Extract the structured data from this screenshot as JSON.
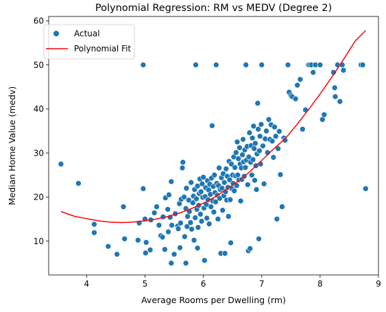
{
  "chart_data": {
    "type": "scatter",
    "title": "Polynomial Regression: RM vs MEDV (Degree 2)",
    "xlabel": "Average Rooms per Dwelling (rm)",
    "ylabel": "Median Home Value (medv)",
    "xlim": [
      3.35,
      9.0
    ],
    "ylim": [
      2.3,
      61.0
    ],
    "xticks": [
      4,
      5,
      6,
      7,
      8,
      9
    ],
    "yticks": [
      10,
      20,
      30,
      40,
      50,
      60
    ],
    "grid": false,
    "legend": "top-left",
    "series": [
      {
        "name": "Actual",
        "kind": "scatter",
        "color": "#1f77b4",
        "points": [
          [
            3.56,
            27.5
          ],
          [
            3.86,
            23.1
          ],
          [
            4.13,
            13.8
          ],
          [
            4.13,
            11.9
          ],
          [
            4.37,
            8.8
          ],
          [
            4.52,
            7.0
          ],
          [
            4.63,
            17.8
          ],
          [
            4.65,
            10.5
          ],
          [
            4.88,
            10.2
          ],
          [
            4.9,
            14.1
          ],
          [
            4.97,
            50.0
          ],
          [
            4.97,
            21.9
          ],
          [
            5.0,
            15.0
          ],
          [
            5.01,
            7.3
          ],
          [
            5.02,
            9.7
          ],
          [
            5.09,
            8.0
          ],
          [
            5.1,
            14.8
          ],
          [
            5.16,
            16.4
          ],
          [
            5.2,
            17.8
          ],
          [
            5.24,
            13.6
          ],
          [
            5.27,
            11.2
          ],
          [
            5.3,
            10.9
          ],
          [
            5.31,
            15.5
          ],
          [
            5.34,
            8.1
          ],
          [
            5.35,
            19.8
          ],
          [
            5.39,
            17.2
          ],
          [
            5.4,
            12.1
          ],
          [
            5.41,
            20.5
          ],
          [
            5.43,
            15.4
          ],
          [
            5.45,
            5.0
          ],
          [
            5.45,
            23.5
          ],
          [
            5.46,
            13.6
          ],
          [
            5.5,
            7.0
          ],
          [
            5.52,
            16.2
          ],
          [
            5.56,
            13.4
          ],
          [
            5.57,
            12.8
          ],
          [
            5.59,
            18.5
          ],
          [
            5.6,
            8.5
          ],
          [
            5.61,
            14.1
          ],
          [
            5.62,
            19.5
          ],
          [
            5.64,
            26.6
          ],
          [
            5.65,
            27.9
          ],
          [
            5.67,
            20.0
          ],
          [
            5.68,
            11.0
          ],
          [
            5.7,
            17.4
          ],
          [
            5.7,
            5.0
          ],
          [
            5.71,
            22.0
          ],
          [
            5.72,
            13.3
          ],
          [
            5.73,
            15.6
          ],
          [
            5.75,
            19.3
          ],
          [
            5.76,
            16.7
          ],
          [
            5.78,
            14.2
          ],
          [
            5.79,
            23.3
          ],
          [
            5.8,
            12.7
          ],
          [
            5.82,
            18.7
          ],
          [
            5.83,
            20.2
          ],
          [
            5.84,
            10.2
          ],
          [
            5.85,
            21.7
          ],
          [
            5.86,
            15.3
          ],
          [
            5.87,
            50.0
          ],
          [
            5.88,
            19.6
          ],
          [
            5.89,
            17.2
          ],
          [
            5.9,
            22.5
          ],
          [
            5.9,
            8.4
          ],
          [
            5.91,
            13.1
          ],
          [
            5.92,
            18.1
          ],
          [
            5.93,
            20.8
          ],
          [
            5.94,
            24.1
          ],
          [
            5.95,
            16.1
          ],
          [
            5.96,
            21.2
          ],
          [
            5.97,
            14.5
          ],
          [
            5.98,
            23.0
          ],
          [
            5.99,
            19.9
          ],
          [
            6.0,
            24.5
          ],
          [
            6.01,
            17.5
          ],
          [
            6.02,
            5.6
          ],
          [
            6.03,
            20.1
          ],
          [
            6.04,
            22.1
          ],
          [
            6.05,
            18.3
          ],
          [
            6.06,
            15.2
          ],
          [
            6.07,
            23.7
          ],
          [
            6.08,
            19.4
          ],
          [
            6.09,
            21.6
          ],
          [
            6.1,
            13.9
          ],
          [
            6.11,
            22.9
          ],
          [
            6.12,
            20.6
          ],
          [
            6.13,
            17.8
          ],
          [
            6.14,
            24.3
          ],
          [
            6.15,
            36.2
          ],
          [
            6.16,
            19.1
          ],
          [
            6.17,
            22.4
          ],
          [
            6.18,
            16.6
          ],
          [
            6.19,
            25.0
          ],
          [
            6.2,
            21.0
          ],
          [
            6.21,
            18.9
          ],
          [
            6.22,
            50.0
          ],
          [
            6.23,
            23.1
          ],
          [
            6.24,
            20.4
          ],
          [
            6.25,
            15.0
          ],
          [
            6.26,
            22.6
          ],
          [
            6.27,
            26.6
          ],
          [
            6.28,
            19.7
          ],
          [
            6.29,
            21.7
          ],
          [
            6.3,
            7.2
          ],
          [
            6.31,
            24.4
          ],
          [
            6.32,
            22.0
          ],
          [
            6.33,
            17.0
          ],
          [
            6.34,
            25.3
          ],
          [
            6.35,
            20.3
          ],
          [
            6.36,
            23.3
          ],
          [
            6.37,
            7.2
          ],
          [
            6.38,
            21.2
          ],
          [
            6.39,
            26.4
          ],
          [
            6.4,
            19.3
          ],
          [
            6.41,
            24.7
          ],
          [
            6.42,
            22.2
          ],
          [
            6.43,
            15.6
          ],
          [
            6.44,
            28.1
          ],
          [
            6.45,
            23.9
          ],
          [
            6.46,
            19.4
          ],
          [
            6.47,
            9.6
          ],
          [
            6.48,
            27.5
          ],
          [
            6.49,
            21.9
          ],
          [
            6.5,
            25.0
          ],
          [
            6.51,
            23.1
          ],
          [
            6.52,
            29.1
          ],
          [
            6.53,
            21.4
          ],
          [
            6.54,
            26.7
          ],
          [
            6.55,
            24.8
          ],
          [
            6.56,
            30.1
          ],
          [
            6.57,
            22.6
          ],
          [
            6.58,
            32.5
          ],
          [
            6.59,
            25.0
          ],
          [
            6.6,
            28.7
          ],
          [
            6.61,
            23.9
          ],
          [
            6.62,
            31.2
          ],
          [
            6.63,
            27.5
          ],
          [
            6.64,
            19.1
          ],
          [
            6.65,
            26.6
          ],
          [
            6.66,
            24.0
          ],
          [
            6.67,
            29.6
          ],
          [
            6.68,
            33.1
          ],
          [
            6.69,
            28.0
          ],
          [
            6.7,
            24.7
          ],
          [
            6.71,
            30.7
          ],
          [
            6.72,
            26.7
          ],
          [
            6.73,
            50.0
          ],
          [
            6.74,
            28.4
          ],
          [
            6.75,
            31.5
          ],
          [
            6.76,
            22.8
          ],
          [
            6.77,
            7.8
          ],
          [
            6.78,
            29.1
          ],
          [
            6.79,
            34.6
          ],
          [
            6.8,
            8.3
          ],
          [
            6.81,
            27.9
          ],
          [
            6.82,
            31.7
          ],
          [
            6.83,
            25.0
          ],
          [
            6.84,
            33.4
          ],
          [
            6.85,
            28.5
          ],
          [
            6.86,
            36.1
          ],
          [
            6.87,
            31.0
          ],
          [
            6.88,
            23.8
          ],
          [
            6.89,
            32.2
          ],
          [
            6.9,
            27.1
          ],
          [
            6.91,
            21.7
          ],
          [
            6.92,
            29.8
          ],
          [
            6.93,
            41.3
          ],
          [
            6.94,
            35.4
          ],
          [
            6.95,
            10.5
          ],
          [
            6.96,
            30.5
          ],
          [
            6.97,
            33.8
          ],
          [
            6.98,
            27.5
          ],
          [
            6.99,
            36.5
          ],
          [
            7.0,
            50.0
          ],
          [
            7.02,
            31.6
          ],
          [
            7.04,
            23.0
          ],
          [
            7.06,
            33.2
          ],
          [
            7.08,
            35.0
          ],
          [
            7.1,
            30.1
          ],
          [
            7.12,
            37.6
          ],
          [
            7.14,
            33.1
          ],
          [
            7.16,
            36.4
          ],
          [
            7.18,
            32.7
          ],
          [
            7.2,
            29.0
          ],
          [
            7.22,
            35.9
          ],
          [
            7.24,
            33.8
          ],
          [
            7.26,
            15.0
          ],
          [
            7.28,
            31.0
          ],
          [
            7.3,
            34.9
          ],
          [
            7.32,
            25.1
          ],
          [
            7.35,
            17.8
          ],
          [
            7.38,
            33.4
          ],
          [
            7.4,
            32.9
          ],
          [
            7.45,
            50.0
          ],
          [
            7.47,
            43.8
          ],
          [
            7.5,
            43.1
          ],
          [
            7.52,
            42.8
          ],
          [
            7.58,
            42.3
          ],
          [
            7.61,
            45.4
          ],
          [
            7.66,
            46.7
          ],
          [
            7.7,
            35.4
          ],
          [
            7.75,
            39.8
          ],
          [
            7.8,
            50.0
          ],
          [
            7.82,
            50.0
          ],
          [
            7.85,
            50.0
          ],
          [
            7.88,
            48.3
          ],
          [
            7.92,
            50.0
          ],
          [
            8.0,
            50.0
          ],
          [
            8.04,
            37.6
          ],
          [
            8.07,
            38.7
          ],
          [
            8.23,
            48.3
          ],
          [
            8.25,
            44.8
          ],
          [
            8.26,
            42.8
          ],
          [
            8.3,
            50.0
          ],
          [
            8.34,
            41.7
          ],
          [
            8.38,
            50.0
          ],
          [
            8.4,
            48.8
          ],
          [
            8.7,
            50.0
          ],
          [
            8.73,
            50.0
          ],
          [
            8.78,
            21.9
          ]
        ]
      },
      {
        "name": "Polynomial Fit",
        "kind": "line",
        "color": "#ff0000",
        "points": [
          [
            3.56,
            16.7
          ],
          [
            3.8,
            15.6
          ],
          [
            4.0,
            15.1
          ],
          [
            4.2,
            14.6
          ],
          [
            4.4,
            14.3
          ],
          [
            4.6,
            14.2
          ],
          [
            4.8,
            14.3
          ],
          [
            5.0,
            14.6
          ],
          [
            5.2,
            15.0
          ],
          [
            5.4,
            15.6
          ],
          [
            5.6,
            16.4
          ],
          [
            5.8,
            17.4
          ],
          [
            6.0,
            18.6
          ],
          [
            6.2,
            20.0
          ],
          [
            6.4,
            21.8
          ],
          [
            6.6,
            23.6
          ],
          [
            6.8,
            25.8
          ],
          [
            7.0,
            28.3
          ],
          [
            7.2,
            30.9
          ],
          [
            7.4,
            33.2
          ],
          [
            7.6,
            36.4
          ],
          [
            7.8,
            39.8
          ],
          [
            8.0,
            43.4
          ],
          [
            8.2,
            47.2
          ],
          [
            8.4,
            51.2
          ],
          [
            8.6,
            55.4
          ],
          [
            8.78,
            57.8
          ]
        ]
      }
    ]
  }
}
